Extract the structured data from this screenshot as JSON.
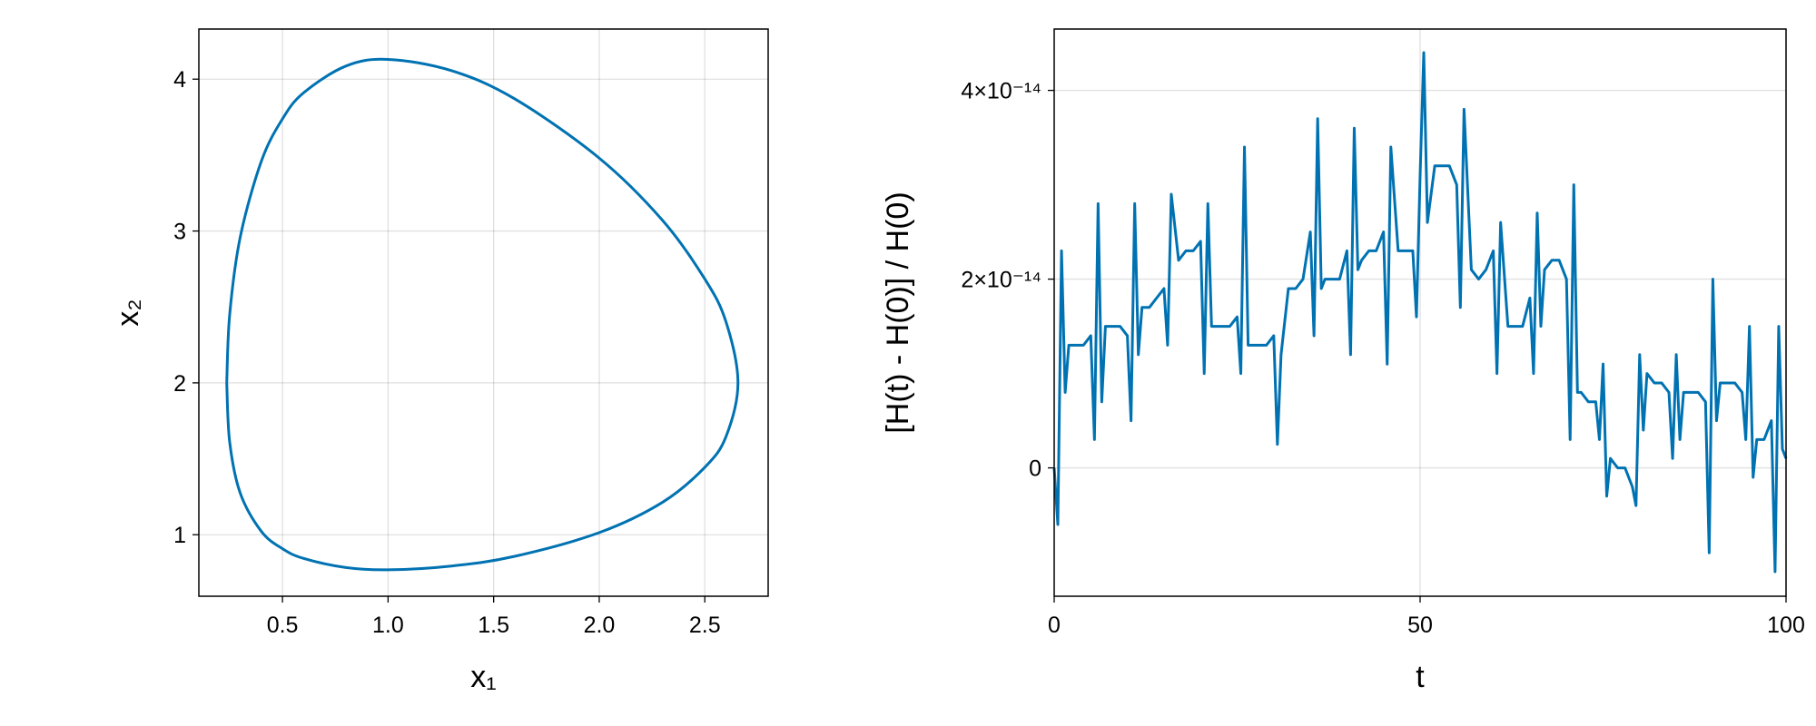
{
  "chart_data": [
    {
      "type": "line",
      "xlabel": "x₁",
      "ylabel": "x₂",
      "x": [
        0.236,
        0.25,
        0.3,
        0.4,
        0.5,
        0.6,
        0.8,
        1.0,
        1.3,
        1.6,
        2.0,
        2.3,
        2.5,
        2.6,
        2.657,
        2.6,
        2.5,
        2.3,
        2.0,
        1.6,
        1.3,
        1.0,
        0.8,
        0.6,
        0.5,
        0.4,
        0.3,
        0.25,
        0.236
      ],
      "series": [
        {
          "color": "#0072b2",
          "values": [
            2.0,
            2.449,
            2.96,
            3.46,
            3.738,
            3.91,
            4.086,
            4.13,
            4.056,
            3.87,
            3.48,
            3.07,
            2.684,
            2.403,
            2.0,
            1.645,
            1.444,
            1.214,
            1.014,
            0.858,
            0.794,
            0.769,
            0.784,
            0.844,
            0.908,
            1.022,
            1.274,
            1.61,
            2.0
          ]
        }
      ],
      "xlim": [
        0.104,
        2.8
      ],
      "ylim": [
        0.595,
        4.33
      ],
      "xticks": [
        0.5,
        {
          "value": 1,
          "label": "1.0"
        },
        1.5,
        {
          "value": 2,
          "label": "2.0"
        },
        2.5
      ],
      "yticks": [
        1,
        2,
        3,
        4
      ],
      "grid": true
    },
    {
      "type": "line",
      "xlabel": "t",
      "ylabel": "[H(t) - H(0)] / H(0)",
      "x": [
        0,
        0.5,
        1,
        1.5,
        2,
        3,
        4,
        5,
        5.5,
        6,
        6.5,
        7,
        8,
        9,
        10,
        10.5,
        11,
        11.5,
        12,
        13,
        14,
        15,
        15.5,
        16,
        17,
        18,
        19,
        20,
        20.5,
        21,
        21.5,
        22,
        23,
        24,
        25,
        25.5,
        26,
        26.5,
        27,
        28,
        29,
        30,
        30.5,
        31,
        32,
        33,
        34,
        35,
        35.5,
        36,
        36.5,
        37,
        38,
        39,
        40,
        40.5,
        41,
        41.5,
        42,
        43,
        44,
        45,
        45.5,
        46,
        47,
        48,
        49,
        49.5,
        50,
        50.5,
        51,
        52,
        53,
        54,
        55,
        55.5,
        56,
        57,
        58,
        59,
        60,
        60.5,
        61,
        62,
        63,
        64,
        65,
        65.5,
        66,
        66.5,
        67,
        68,
        69,
        70,
        70.5,
        71,
        71.5,
        72,
        73,
        74,
        74.5,
        75,
        75.5,
        76,
        77,
        78,
        79,
        79.5,
        80,
        80.5,
        81,
        82,
        83,
        84,
        84.5,
        85,
        85.5,
        86,
        87,
        88,
        89,
        89.5,
        90,
        90.5,
        91,
        92,
        93,
        94,
        94.5,
        95,
        95.5,
        96,
        97,
        98,
        98.5,
        99,
        99.5,
        100
      ],
      "series": [
        {
          "color": "#0072b2",
          "values": [
            0,
            -6e-15,
            2.3e-14,
            8e-15,
            1.3e-14,
            1.3e-14,
            1.3e-14,
            1.4e-14,
            3e-15,
            2.8e-14,
            7e-15,
            1.5e-14,
            1.5e-14,
            1.5e-14,
            1.4e-14,
            5e-15,
            2.8e-14,
            1.2e-14,
            1.7e-14,
            1.7e-14,
            1.8e-14,
            1.9e-14,
            1.3e-14,
            2.9e-14,
            2.2e-14,
            2.3e-14,
            2.3e-14,
            2.4e-14,
            1e-14,
            2.8e-14,
            1.5e-14,
            1.5e-14,
            1.5e-14,
            1.5e-14,
            1.6e-14,
            1e-14,
            3.4e-14,
            1.3e-14,
            1.3e-14,
            1.3e-14,
            1.3e-14,
            1.4e-14,
            2.5e-15,
            1.2e-14,
            1.9e-14,
            1.9e-14,
            2e-14,
            2.5e-14,
            1.4e-14,
            3.7e-14,
            1.9e-14,
            2e-14,
            2e-14,
            2e-14,
            2.3e-14,
            1.2e-14,
            3.6e-14,
            2.1e-14,
            2.2e-14,
            2.3e-14,
            2.3e-14,
            2.5e-14,
            1.1e-14,
            3.4e-14,
            2.3e-14,
            2.3e-14,
            2.3e-14,
            1.6e-14,
            3.1e-14,
            4.4e-14,
            2.6e-14,
            3.2e-14,
            3.2e-14,
            3.2e-14,
            3e-14,
            1.7e-14,
            3.8e-14,
            2.1e-14,
            2e-14,
            2.1e-14,
            2.3e-14,
            1e-14,
            2.6e-14,
            1.5e-14,
            1.5e-14,
            1.5e-14,
            1.8e-14,
            1e-14,
            2.7e-14,
            1.5e-14,
            2.1e-14,
            2.2e-14,
            2.2e-14,
            2e-14,
            3e-15,
            3e-14,
            8e-15,
            8e-15,
            7e-15,
            7e-15,
            3e-15,
            1.1e-14,
            -3e-15,
            1e-15,
            0,
            0,
            -2e-15,
            -4e-15,
            1.2e-14,
            4e-15,
            1e-14,
            9e-15,
            9e-15,
            8e-15,
            1e-15,
            1.2e-14,
            3e-15,
            8e-15,
            8e-15,
            8e-15,
            7e-15,
            -9e-15,
            2e-14,
            5e-15,
            9e-15,
            9e-15,
            9e-15,
            8e-15,
            3e-15,
            1.5e-14,
            -1e-15,
            3e-15,
            3e-15,
            5e-15,
            -1.1e-14,
            1.5e-14,
            2e-15,
            1e-15
          ]
        }
      ],
      "xlim": [
        0,
        100
      ],
      "ylim": [
        -1.36e-14,
        4.65e-14
      ],
      "xticks": [
        0,
        50,
        100
      ],
      "yticks": [
        0,
        {
          "value": 2e-14,
          "label": "2×10⁻¹⁴"
        },
        {
          "value": 4e-14,
          "label": "4×10⁻¹⁴"
        }
      ],
      "grid": true
    }
  ]
}
